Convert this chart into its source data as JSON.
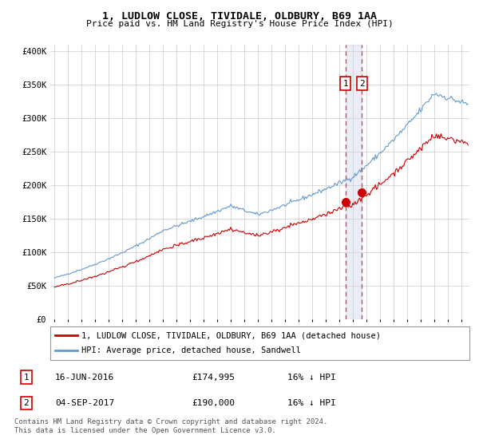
{
  "title": "1, LUDLOW CLOSE, TIVIDALE, OLDBURY, B69 1AA",
  "subtitle": "Price paid vs. HM Land Registry's House Price Index (HPI)",
  "ylabel_ticks": [
    "£0",
    "£50K",
    "£100K",
    "£150K",
    "£200K",
    "£250K",
    "£300K",
    "£350K",
    "£400K"
  ],
  "ytick_values": [
    0,
    50000,
    100000,
    150000,
    200000,
    250000,
    300000,
    350000,
    400000
  ],
  "ylim": [
    0,
    410000
  ],
  "legend_label_red": "1, LUDLOW CLOSE, TIVIDALE, OLDBURY, B69 1AA (detached house)",
  "legend_label_blue": "HPI: Average price, detached house, Sandwell",
  "transaction1_label": "1",
  "transaction1_date": "16-JUN-2016",
  "transaction1_price": "£174,995",
  "transaction1_hpi": "16% ↓ HPI",
  "transaction2_label": "2",
  "transaction2_date": "04-SEP-2017",
  "transaction2_price": "£190,000",
  "transaction2_hpi": "16% ↓ HPI",
  "footer": "Contains HM Land Registry data © Crown copyright and database right 2024.\nThis data is licensed under the Open Government Licence v3.0.",
  "red_color": "#cc0000",
  "blue_color": "#6699cc",
  "dashed_color": "#dd4444",
  "shade_color": "#aabbdd",
  "marker_color": "#cc0000",
  "background_color": "#ffffff",
  "grid_color": "#cccccc",
  "annotation_box_color": "#cc0000",
  "transaction1_x": 2016.458,
  "transaction1_y": 174995,
  "transaction2_x": 2017.667,
  "transaction2_y": 190000,
  "vline1_x": 2016.458,
  "vline2_x": 2017.667,
  "xlim_left": 1994.7,
  "xlim_right": 2025.6
}
